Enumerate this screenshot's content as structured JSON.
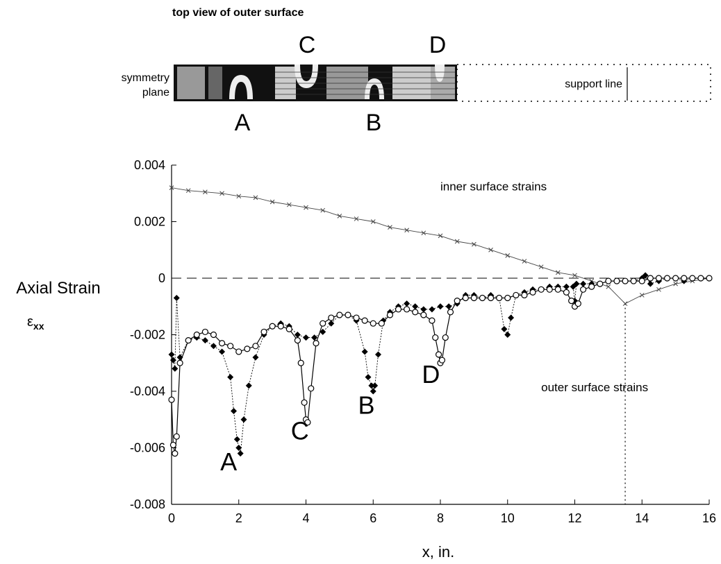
{
  "top_view": {
    "title": "top view of outer surface",
    "left_label_line1": "symmetry",
    "left_label_line2": "plane",
    "support_label": "support line",
    "letters_top": [
      "C",
      "D"
    ],
    "letters_bottom": [
      "A",
      "B"
    ]
  },
  "chart_data": {
    "type": "scatter",
    "title": "",
    "xlabel": "x,   in.",
    "ylabel": "Axial Strain",
    "ylabel_symbol": "ε",
    "ylabel_subscript": "xx",
    "xlim": [
      0,
      16
    ],
    "ylim": [
      -0.008,
      0.004
    ],
    "x_ticks": [
      0,
      2,
      4,
      6,
      8,
      10,
      12,
      14,
      16
    ],
    "y_ticks": [
      0.004,
      0.002,
      0,
      -0.002,
      -0.004,
      -0.006,
      -0.008
    ],
    "y_tick_labels": [
      "0.004",
      "0.002",
      "0",
      "-0.002",
      "-0.004",
      "-0.006",
      "-0.008"
    ],
    "zero_line": "dashed",
    "support_line_x": 13.5,
    "annotations": [
      {
        "text": "inner surface strains",
        "x": 8.0,
        "y": 0.0031
      },
      {
        "text": "outer surface strains",
        "x": 11.0,
        "y": -0.004
      },
      {
        "text": "A",
        "x": 1.45,
        "y": -0.0068
      },
      {
        "text": "C",
        "x": 3.55,
        "y": -0.0057
      },
      {
        "text": "B",
        "x": 5.55,
        "y": -0.0048
      },
      {
        "text": "D",
        "x": 7.45,
        "y": -0.0037
      }
    ],
    "series": [
      {
        "marker": "x",
        "color": "#444444",
        "x": [
          0,
          0.5,
          1,
          1.5,
          2,
          2.5,
          3,
          3.5,
          4,
          4.5,
          5,
          5.5,
          6,
          6.5,
          7,
          7.5,
          8,
          8.5,
          9,
          9.5,
          10,
          10.5,
          11,
          11.5,
          12,
          12.5,
          13,
          13.5,
          14,
          14.5,
          15,
          15.5,
          16
        ],
        "y": [
          0.0032,
          0.0031,
          0.00305,
          0.003,
          0.0029,
          0.00285,
          0.0027,
          0.0026,
          0.0025,
          0.0024,
          0.0022,
          0.0021,
          0.002,
          0.0018,
          0.0017,
          0.0016,
          0.0015,
          0.0013,
          0.0012,
          0.001,
          0.0008,
          0.0006,
          0.0004,
          0.0002,
          0.0001,
          -0.0001,
          -0.0003,
          -0.0009,
          -0.0006,
          -0.0004,
          -0.0002,
          -0.0001,
          0.0
        ]
      },
      {
        "marker": "filled-diamond",
        "color": "#000000",
        "x": [
          0.0,
          0.05,
          0.1,
          0.15,
          0.25,
          0.5,
          0.75,
          1.0,
          1.25,
          1.5,
          1.75,
          1.85,
          1.95,
          2.0,
          2.05,
          2.15,
          2.3,
          2.5,
          2.75,
          3.0,
          3.25,
          3.5,
          3.75,
          4.0,
          4.25,
          4.5,
          4.75,
          5.0,
          5.25,
          5.5,
          5.75,
          5.85,
          5.95,
          6.0,
          6.05,
          6.15,
          6.3,
          6.5,
          6.75,
          7.0,
          7.25,
          7.5,
          7.75,
          8.0,
          8.25,
          8.5,
          8.75,
          9.0,
          9.25,
          9.5,
          9.75,
          9.9,
          10.0,
          10.1,
          10.25,
          10.5,
          10.75,
          11.0,
          11.25,
          11.5,
          11.75,
          11.95,
          12.0,
          12.05,
          12.25,
          12.5,
          12.75,
          13.0,
          13.25,
          13.5,
          13.75,
          14.0,
          14.1,
          14.25,
          14.5,
          14.75,
          15.0,
          15.25,
          15.5,
          15.75,
          16.0
        ],
        "y": [
          -0.0027,
          -0.0029,
          -0.0032,
          -0.0007,
          -0.0028,
          -0.0022,
          -0.0021,
          -0.0022,
          -0.0024,
          -0.0026,
          -0.0035,
          -0.0047,
          -0.0057,
          -0.006,
          -0.0062,
          -0.005,
          -0.0038,
          -0.0028,
          -0.002,
          -0.0017,
          -0.0016,
          -0.0017,
          -0.002,
          -0.0021,
          -0.0021,
          -0.0019,
          -0.0016,
          -0.0013,
          -0.0013,
          -0.0015,
          -0.0026,
          -0.0035,
          -0.0038,
          -0.004,
          -0.0038,
          -0.0027,
          -0.0015,
          -0.0012,
          -0.001,
          -0.0009,
          -0.001,
          -0.0011,
          -0.0011,
          -0.001,
          -0.001,
          -0.0009,
          -0.0006,
          -0.0006,
          -0.0007,
          -0.0006,
          -0.0007,
          -0.0018,
          -0.002,
          -0.0014,
          -0.0006,
          -0.0005,
          -0.0004,
          -0.0004,
          -0.0003,
          -0.0003,
          -0.0003,
          -0.0003,
          -0.0008,
          -0.0002,
          -0.0002,
          -0.0002,
          -0.0002,
          -0.0001,
          -0.0001,
          -0.0001,
          -0.0001,
          0.0,
          0.0001,
          -0.0002,
          -0.0001,
          0.0,
          0.0,
          -0.0001,
          0.0,
          0.0,
          0.0
        ]
      },
      {
        "marker": "open-circle",
        "color": "#000000",
        "x": [
          0.0,
          0.05,
          0.1,
          0.15,
          0.25,
          0.5,
          0.75,
          1.0,
          1.25,
          1.5,
          1.75,
          2.0,
          2.25,
          2.5,
          2.75,
          3.0,
          3.25,
          3.5,
          3.75,
          3.85,
          3.95,
          4.0,
          4.05,
          4.15,
          4.3,
          4.5,
          4.75,
          5.0,
          5.25,
          5.5,
          5.75,
          6.0,
          6.25,
          6.5,
          6.75,
          7.0,
          7.25,
          7.5,
          7.75,
          7.85,
          7.95,
          8.0,
          8.05,
          8.15,
          8.3,
          8.5,
          8.75,
          9.0,
          9.25,
          9.5,
          9.75,
          10.0,
          10.25,
          10.5,
          10.75,
          11.0,
          11.25,
          11.5,
          11.75,
          11.9,
          12.0,
          12.1,
          12.25,
          12.5,
          12.75,
          13.0,
          13.25,
          13.5,
          13.75,
          14.0,
          14.25,
          14.5,
          14.75,
          15.0,
          15.25,
          15.5,
          15.75,
          16.0
        ],
        "y": [
          -0.0043,
          -0.0059,
          -0.0062,
          -0.0056,
          -0.003,
          -0.0022,
          -0.002,
          -0.0019,
          -0.002,
          -0.0023,
          -0.0024,
          -0.0026,
          -0.0025,
          -0.0024,
          -0.0019,
          -0.0017,
          -0.0017,
          -0.0018,
          -0.0022,
          -0.003,
          -0.0044,
          -0.005,
          -0.0051,
          -0.0039,
          -0.0023,
          -0.0016,
          -0.0014,
          -0.0013,
          -0.0013,
          -0.0014,
          -0.0015,
          -0.0016,
          -0.0016,
          -0.0013,
          -0.0011,
          -0.0011,
          -0.0012,
          -0.0013,
          -0.0015,
          -0.0021,
          -0.0027,
          -0.003,
          -0.0029,
          -0.0021,
          -0.0012,
          -0.0008,
          -0.0007,
          -0.0007,
          -0.0007,
          -0.0007,
          -0.0007,
          -0.0007,
          -0.0006,
          -0.0006,
          -0.0005,
          -0.0004,
          -0.0004,
          -0.0004,
          -0.0005,
          -0.0008,
          -0.001,
          -0.0009,
          -0.0004,
          -0.0003,
          -0.0002,
          -0.0001,
          -0.0001,
          -0.0001,
          -0.0001,
          -0.0001,
          0.0,
          0.0,
          0.0,
          0.0,
          0.0,
          0.0,
          0.0,
          0.0
        ]
      }
    ]
  }
}
